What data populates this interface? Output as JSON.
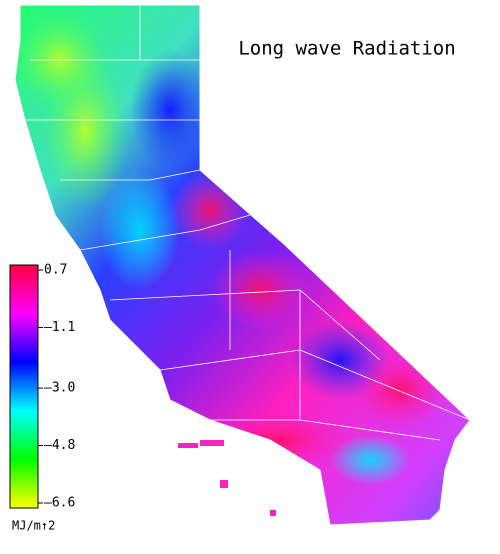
{
  "title": "Long wave Radiation",
  "colorbar": {
    "lim": [
      -6.6,
      0.7
    ],
    "ticks": [
      0.7,
      {
        "value": -1.1,
        "label": "–1.1"
      },
      {
        "value": -3.0,
        "label": "–3.0"
      },
      {
        "value": -4.8,
        "label": "–4.8"
      },
      {
        "value": -6.6,
        "label": "–6.6"
      }
    ],
    "colors": [
      "#ffff00",
      "#00ff00",
      "#00ffff",
      "#0000ff",
      "#ff00ff",
      "#ff0040"
    ],
    "label": "MJ/m↑2"
  }
}
